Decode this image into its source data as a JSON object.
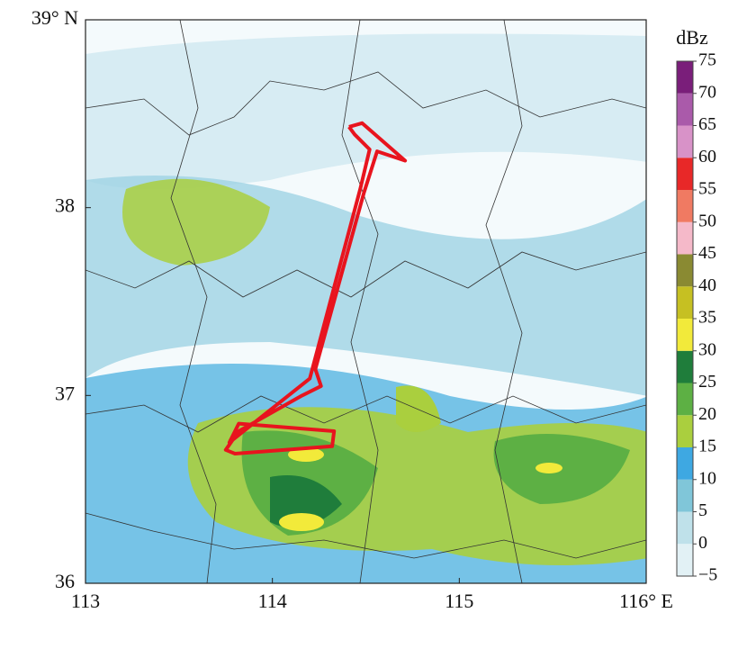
{
  "chart_data": {
    "type": "map",
    "xlim": [
      113,
      116
    ],
    "ylim": [
      36,
      39
    ],
    "xticks": [
      113,
      114,
      115,
      {
        "value": 116,
        "label": "116° E"
      }
    ],
    "yticks": [
      36,
      37,
      38,
      {
        "value": 39,
        "label": "39° N"
      }
    ],
    "colorbar": {
      "title": "dBz",
      "levels": [
        {
          "value": -5,
          "label": "−5"
        },
        0,
        5,
        10,
        15,
        20,
        25,
        30,
        35,
        40,
        45,
        50,
        55,
        60,
        65,
        70,
        75
      ],
      "colors": [
        "#e2f1f5",
        "#bfe1ea",
        "#80c6d9",
        "#3ea8e2",
        "#aacf3e",
        "#5db044",
        "#1f7d3b",
        "#f2ea3a",
        "#c6c022",
        "#8a8a32",
        "#f5b9c9",
        "#f07a62",
        "#e82828",
        "#d892c8",
        "#aa5aaa",
        "#7a1e7a"
      ]
    },
    "track": {
      "color": "#e8141e",
      "lon": [
        114.41,
        114.48,
        114.71,
        114.56,
        114.49,
        114.23,
        114.26,
        114.16,
        113.82,
        113.75,
        113.8,
        114.32,
        114.33,
        113.82,
        113.77,
        114.2,
        114.47,
        114.52,
        114.44,
        114.41
      ],
      "lat": [
        38.43,
        38.45,
        38.25,
        38.3,
        38.08,
        37.14,
        37.05,
        37.0,
        36.81,
        36.71,
        36.69,
        36.73,
        36.81,
        36.85,
        36.75,
        37.09,
        38.1,
        38.31,
        38.39,
        38.43
      ]
    }
  }
}
